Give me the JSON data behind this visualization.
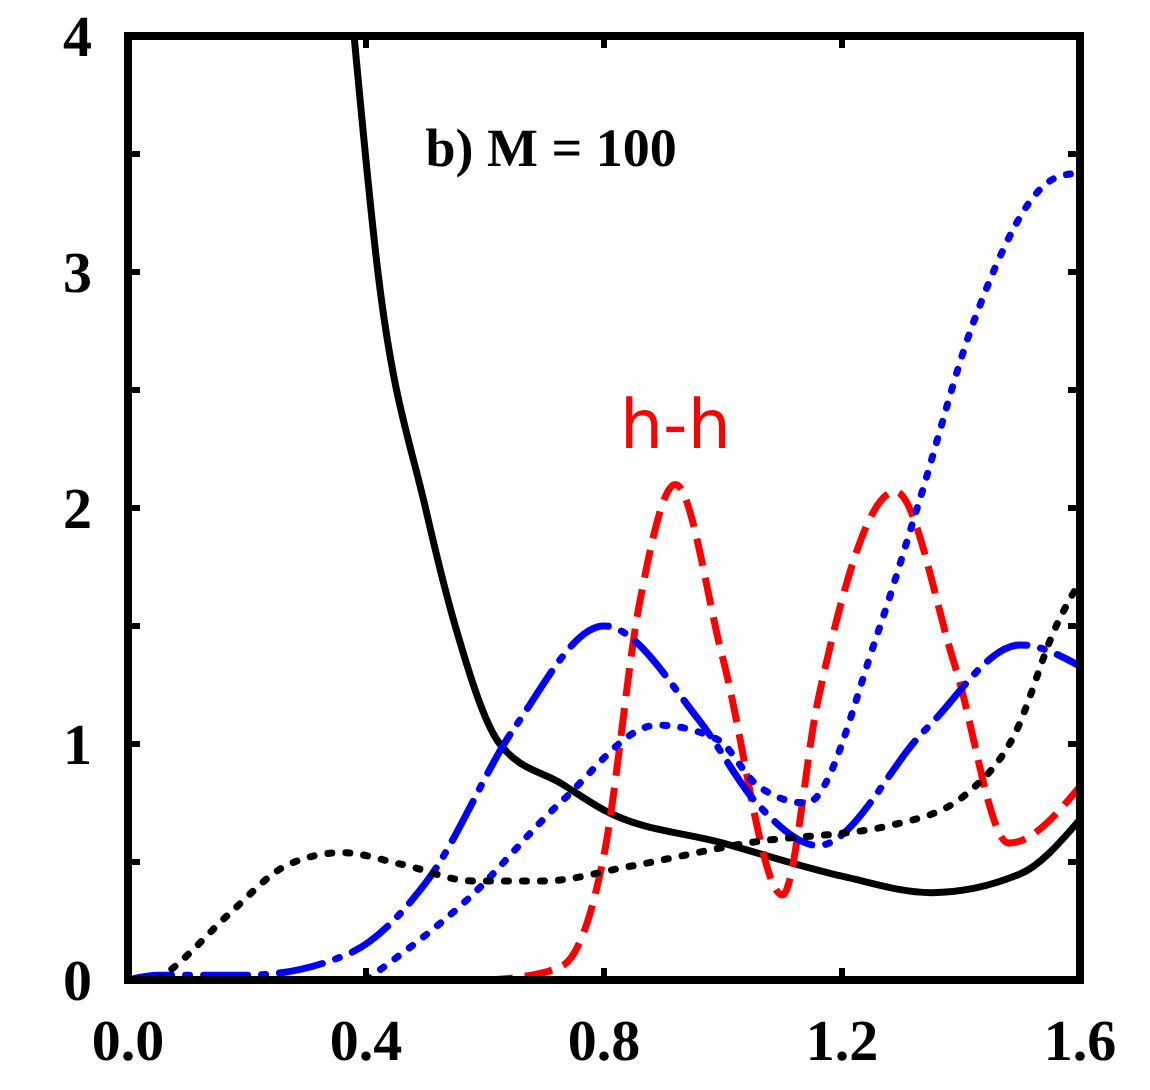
{
  "chart_data": {
    "type": "line",
    "xlim": [
      0,
      1.6
    ],
    "ylim": [
      0,
      4
    ],
    "xticks": [
      {
        "value": 0,
        "label": "0.0"
      },
      0.4,
      0.8,
      1.2,
      1.6
    ],
    "yticks": [
      0,
      {
        "value": 0.5,
        "label": null
      },
      1,
      {
        "value": 1.5,
        "label": null
      },
      2,
      {
        "value": 2.5,
        "label": null
      },
      3,
      {
        "value": 3.5,
        "label": null
      },
      4
    ],
    "grid": false,
    "marker": "none",
    "annotations": [
      "b) M = 100",
      {
        "text": "h-h",
        "x": 0.92,
        "y": 2.1
      }
    ],
    "series": [
      {
        "color": "#000000",
        "line_style": "solid",
        "x": [
          0.38,
          0.42,
          0.5,
          0.55,
          0.625,
          0.73,
          0.8,
          1.0,
          1.2,
          1.35,
          1.5,
          1.6
        ],
        "values": [
          4,
          3,
          2,
          1.5,
          1,
          0.83,
          0.72,
          0.58,
          0.44,
          0.37,
          0.45,
          0.68
        ]
      },
      {
        "color": "#ff0000",
        "line_style": "dashed",
        "x": [
          0.6,
          0.65,
          0.73,
          0.8,
          0.86,
          0.92,
          1.0,
          1.1,
          1.16,
          1.29,
          1.39,
          1.48,
          1.6
        ],
        "values": [
          0,
          0.01,
          0.06,
          0.53,
          1.6,
          2.1,
          1.36,
          0.36,
          1.19,
          2.07,
          1.33,
          0.58,
          0.82
        ]
      },
      {
        "color": "#0000ff",
        "line_style": "dashdot",
        "x": [
          0,
          0.05,
          0.2,
          0.37,
          0.5,
          0.65,
          0.8,
          0.96,
          1.06,
          1.16,
          1.34,
          1.5,
          1.6
        ],
        "values": [
          0,
          0.02,
          0.02,
          0.11,
          0.41,
          1.07,
          1.5,
          1.1,
          0.74,
          0.57,
          1.06,
          1.42,
          1.33
        ]
      },
      {
        "color": "#0000ff",
        "line_style": "dotted",
        "x": [
          0.4,
          0.57,
          0.73,
          0.89,
          0.99,
          1.06,
          1.14,
          1.26,
          1.33,
          1.42,
          1.56,
          1.6
        ],
        "values": [
          0,
          0.34,
          0.76,
          1.08,
          1.02,
          0.82,
          0.75,
          1.47,
          2.03,
          2.78,
          3.4,
          3.42
        ]
      },
      {
        "color": "#000000",
        "line_style": "dotted",
        "x": [
          0.05,
          0.08,
          0.17,
          0.27,
          0.36,
          0.46,
          0.58,
          0.7,
          0.84,
          1.04,
          1.29,
          1.41,
          1.49,
          1.56,
          1.6
        ],
        "values": [
          0,
          0.06,
          0.28,
          0.49,
          0.54,
          0.49,
          0.42,
          0.42,
          0.48,
          0.58,
          0.66,
          0.79,
          1.04,
          1.5,
          1.69
        ]
      }
    ]
  }
}
